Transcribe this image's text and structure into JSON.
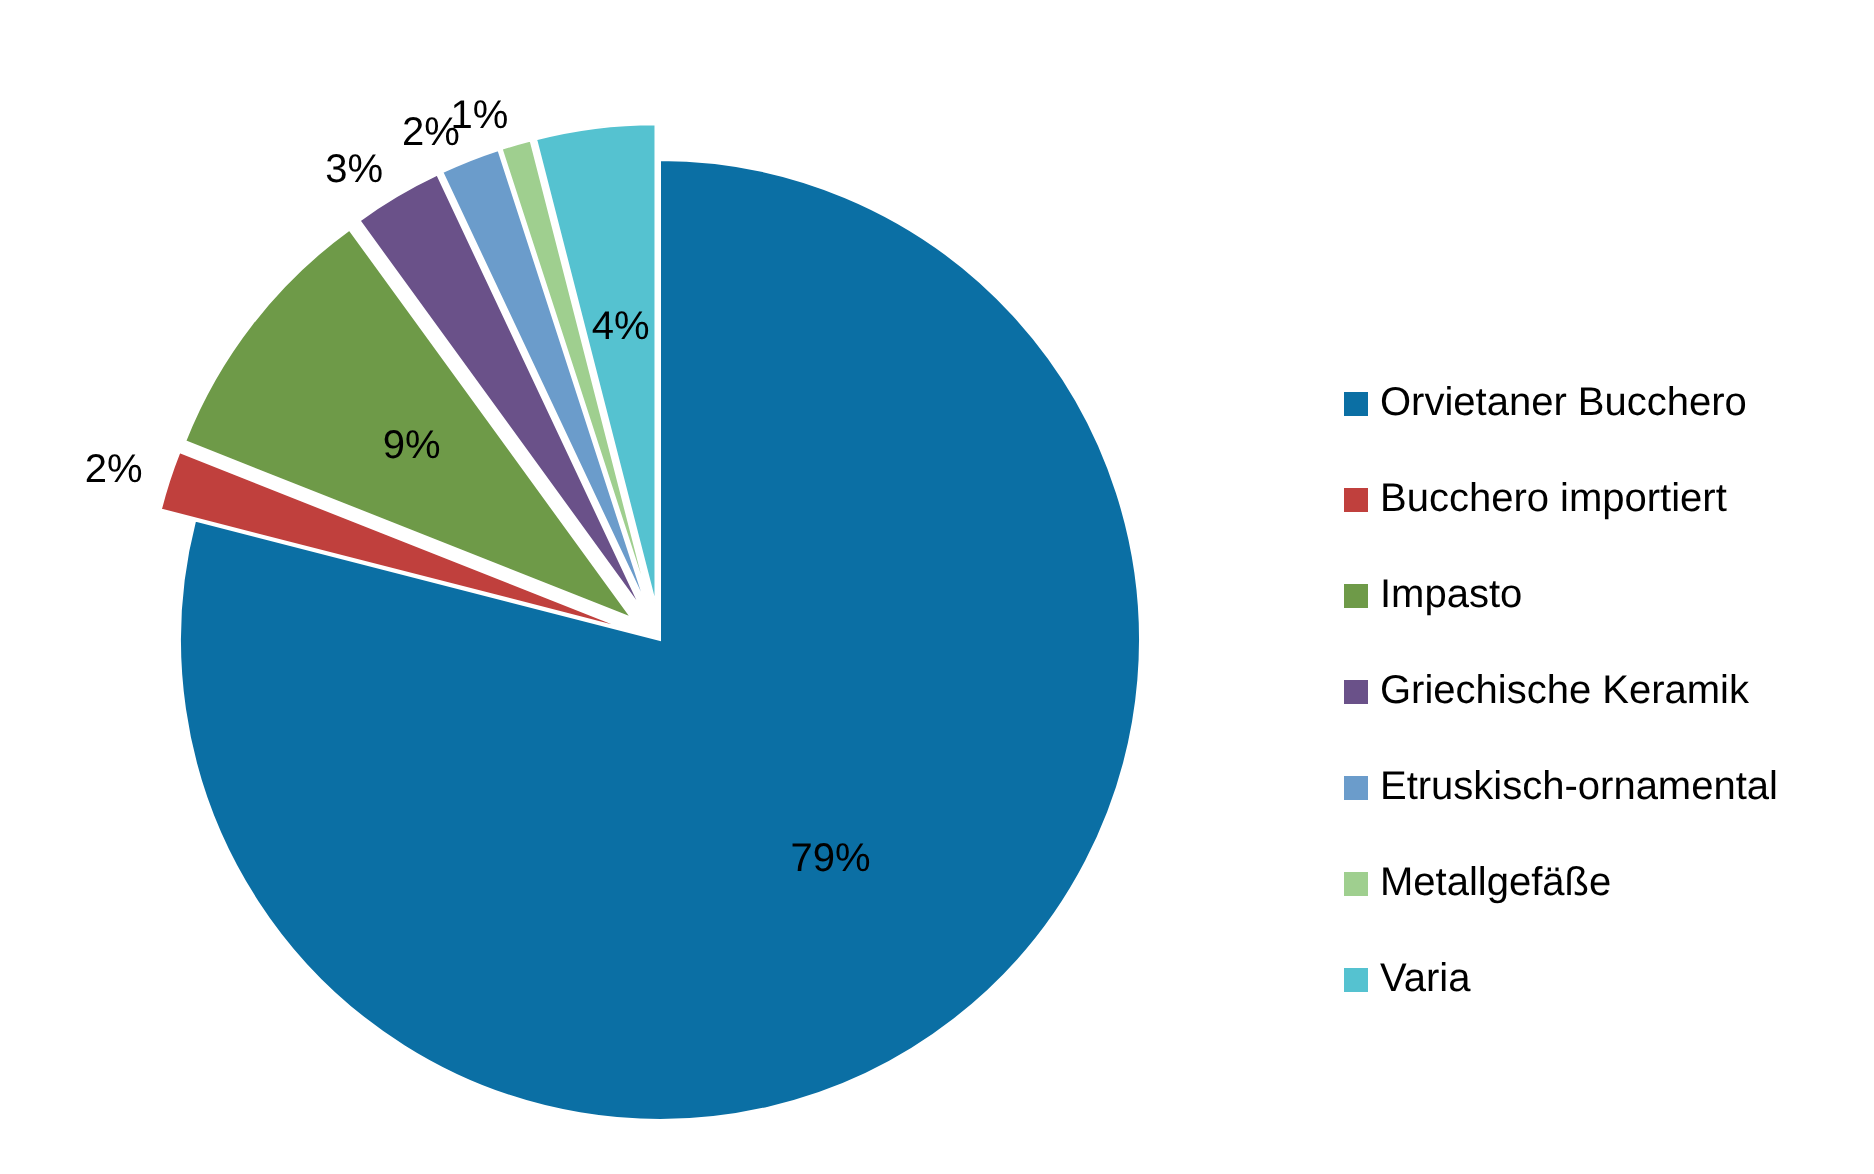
{
  "chart_data": {
    "type": "pie",
    "categories": [
      "Orvietaner Bucchero",
      "Bucchero importiert",
      "Impasto",
      "Griechische Keramik",
      "Etruskisch-ornamental",
      "Metallgefäße",
      "Varia"
    ],
    "values": [
      79,
      2,
      9,
      3,
      2,
      1,
      4
    ],
    "colors": [
      "#0b6fa4",
      "#c0403d",
      "#6e9a48",
      "#6a5189",
      "#6b9ccb",
      "#9fcf8f",
      "#55c2d0"
    ],
    "value_labels": [
      "79%",
      "2%",
      "9%",
      "3%",
      "2%",
      "1%",
      "4%"
    ],
    "legend": "right"
  }
}
